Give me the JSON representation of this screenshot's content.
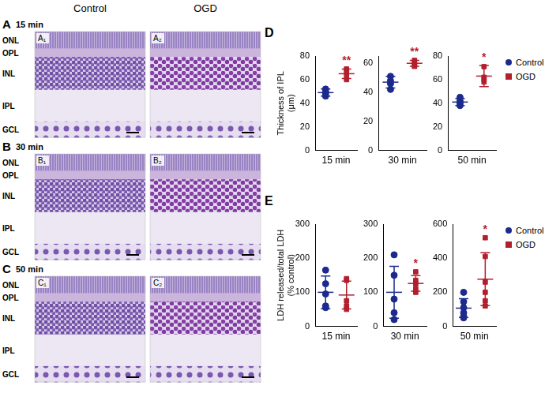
{
  "histology": {
    "columns": [
      "Control",
      "OGD"
    ],
    "layers": [
      "ONL",
      "OPL",
      "INL",
      "IPL",
      "GCL"
    ],
    "rows": [
      {
        "panel": "A",
        "time": "15 min",
        "images": [
          "A₁",
          "A₂"
        ]
      },
      {
        "panel": "B",
        "time": "30 min",
        "images": [
          "B₁",
          "B₂"
        ]
      },
      {
        "panel": "C",
        "time": "50 min",
        "images": [
          "C₁",
          "C₂"
        ]
      }
    ]
  },
  "chart_data": [
    {
      "type": "scatter",
      "panel": "D",
      "ylabel": "Thickness of IPL (μm)",
      "xlabel": "15 min",
      "ylim": [
        0,
        80
      ],
      "yticks": [
        0,
        20,
        40,
        60,
        80
      ],
      "grid": false,
      "tick_labels": "y",
      "series": [
        {
          "name": "Control",
          "color": "#1b2a8c",
          "marker": "circle",
          "values": [
            52,
            50,
            48,
            46
          ],
          "mean": 49,
          "sd": 3
        },
        {
          "name": "OGD",
          "color": "#b21f2d",
          "marker": "square",
          "values": [
            60,
            64,
            67,
            69
          ],
          "mean": 65,
          "sd": 4,
          "significance": "**"
        }
      ]
    },
    {
      "type": "scatter",
      "xlabel": "30 min",
      "ylim": [
        0,
        65
      ],
      "yticks": [
        0,
        20,
        40,
        60
      ],
      "grid": false,
      "tick_labels": "y",
      "series": [
        {
          "name": "Control",
          "color": "#1b2a8c",
          "marker": "circle",
          "values": [
            51,
            48,
            46,
            42
          ],
          "mean": 47,
          "sd": 4
        },
        {
          "name": "OGD",
          "color": "#b21f2d",
          "marker": "square",
          "values": [
            62,
            61,
            59,
            58,
            58
          ],
          "mean": 60,
          "sd": 2,
          "significance": "**"
        }
      ]
    },
    {
      "type": "scatter",
      "xlabel": "50 min",
      "legend": "right",
      "ylim": [
        0,
        80
      ],
      "yticks": [
        0,
        20,
        40,
        60,
        80
      ],
      "grid": false,
      "tick_labels": "y",
      "series": [
        {
          "name": "Control",
          "color": "#1b2a8c",
          "marker": "circle",
          "values": [
            45,
            42,
            40,
            38
          ],
          "mean": 41,
          "sd": 3
        },
        {
          "name": "OGD",
          "color": "#b21f2d",
          "marker": "square",
          "values": [
            71,
            62,
            60,
            58
          ],
          "mean": 63,
          "sd": 9,
          "significance": "*"
        }
      ]
    },
    {
      "type": "scatter",
      "panel": "E",
      "ylabel": "LDH released/total LDH (% control)",
      "xlabel": "15 min",
      "ylim": [
        0,
        300
      ],
      "yticks": [
        0,
        100,
        200,
        300
      ],
      "grid": false,
      "tick_labels": "y",
      "series": [
        {
          "name": "Control",
          "color": "#1b2a8c",
          "marker": "circle",
          "values": [
            165,
            125,
            95,
            60,
            55
          ],
          "mean": 100,
          "sd": 48
        },
        {
          "name": "OGD",
          "color": "#b21f2d",
          "marker": "square",
          "values": [
            140,
            135,
            75,
            60,
            50
          ],
          "mean": 92,
          "sd": 41
        }
      ]
    },
    {
      "type": "scatter",
      "xlabel": "30 min",
      "ylim": [
        0,
        300
      ],
      "yticks": [
        0,
        100,
        200,
        300
      ],
      "grid": false,
      "tick_labels": "y",
      "series": [
        {
          "name": "Control",
          "color": "#1b2a8c",
          "marker": "circle",
          "values": [
            210,
            150,
            80,
            40,
            20
          ],
          "mean": 100,
          "sd": 76
        },
        {
          "name": "OGD",
          "color": "#b21f2d",
          "marker": "square",
          "values": [
            160,
            135,
            125,
            110,
            100
          ],
          "mean": 126,
          "sd": 23,
          "significance": "*"
        }
      ]
    },
    {
      "type": "scatter",
      "xlabel": "50 min",
      "legend": "right",
      "ylim": [
        0,
        600
      ],
      "yticks": [
        0,
        200,
        400,
        600
      ],
      "grid": false,
      "tick_labels": "y",
      "series": [
        {
          "name": "Control",
          "color": "#1b2a8c",
          "marker": "circle",
          "values": [
            200,
            145,
            110,
            80,
            60,
            50
          ],
          "mean": 107,
          "sd": 55
        },
        {
          "name": "OGD",
          "color": "#b21f2d",
          "marker": "square",
          "values": [
            520,
            410,
            260,
            200,
            150,
            120
          ],
          "mean": 277,
          "sd": 155,
          "significance": "*"
        }
      ]
    }
  ]
}
